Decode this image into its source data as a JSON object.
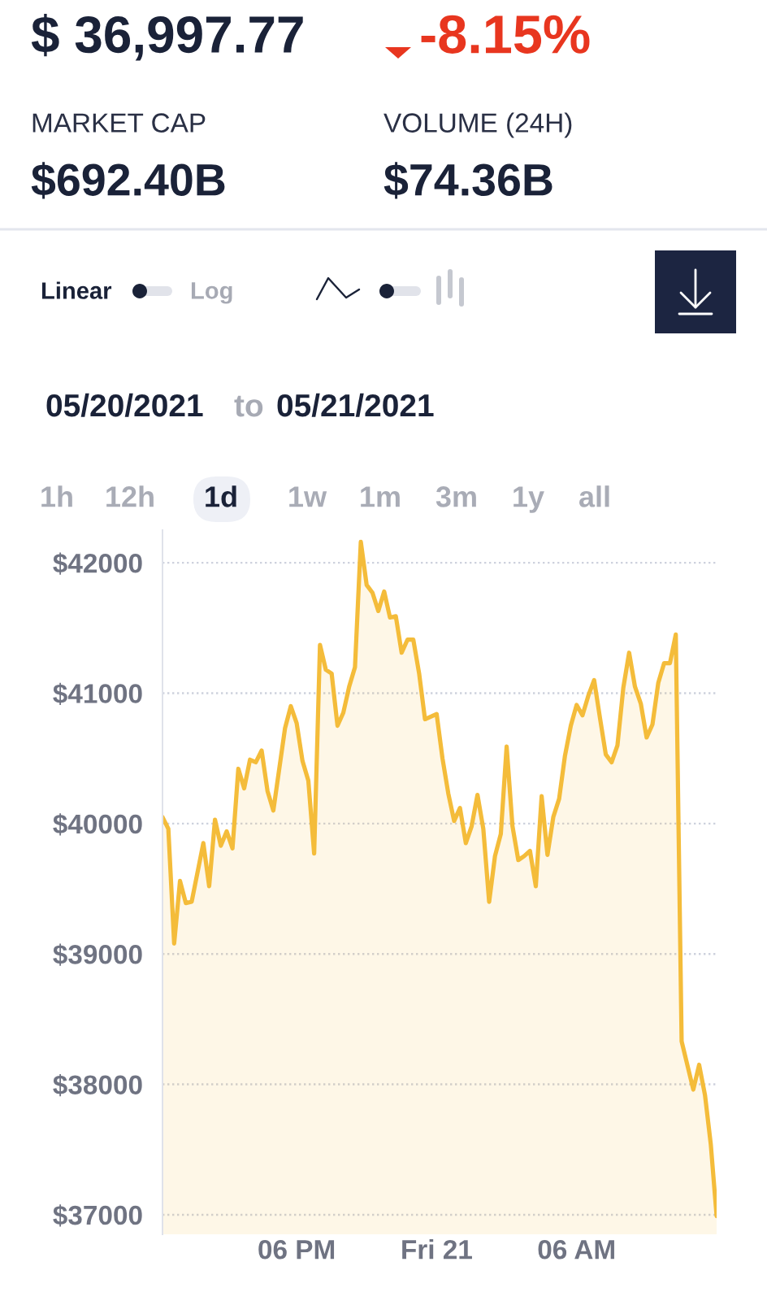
{
  "chart_data": {
    "type": "area",
    "title": "$ 36,997.77",
    "annotations": [
      "-8.15%",
      "MARKET CAP",
      "$692.40B",
      "VOLUME (24H)",
      "$74.36B",
      "Linear",
      "Log",
      "05/20/2021",
      "to",
      "05/21/2021",
      "1h",
      "12h",
      "1d",
      "1w",
      "1m",
      "3m",
      "1y",
      "all"
    ],
    "x": [
      "2021-05-20T12:15",
      "2021-05-20T12:30",
      "2021-05-20T12:45",
      "2021-05-20T13:00",
      "2021-05-20T13:15",
      "2021-05-20T13:30",
      "2021-05-20T14:00",
      "2021-05-20T14:15",
      "2021-05-20T14:30",
      "2021-05-20T14:45",
      "2021-05-20T15:00",
      "2021-05-20T15:15",
      "2021-05-20T15:30",
      "2021-05-20T15:45",
      "2021-05-20T16:00",
      "2021-05-20T16:15",
      "2021-05-20T16:30",
      "2021-05-20T16:45",
      "2021-05-20T17:00",
      "2021-05-20T17:30",
      "2021-05-20T17:45",
      "2021-05-20T18:00",
      "2021-05-20T18:15",
      "2021-05-20T18:30",
      "2021-05-20T18:45",
      "2021-05-20T19:00",
      "2021-05-20T19:15",
      "2021-05-20T19:30",
      "2021-05-20T19:45",
      "2021-05-20T20:00",
      "2021-05-20T20:15",
      "2021-05-20T20:30",
      "2021-05-20T20:45",
      "2021-05-20T21:00",
      "2021-05-20T21:15",
      "2021-05-20T21:30",
      "2021-05-20T21:45",
      "2021-05-20T22:00",
      "2021-05-20T22:15",
      "2021-05-20T22:30",
      "2021-05-20T22:45",
      "2021-05-20T23:00",
      "2021-05-20T23:15",
      "2021-05-20T23:30",
      "2021-05-21T00:00",
      "2021-05-21T00:15",
      "2021-05-21T00:30",
      "2021-05-21T00:45",
      "2021-05-21T01:00",
      "2021-05-21T01:15",
      "2021-05-21T01:30",
      "2021-05-21T01:45",
      "2021-05-21T02:00",
      "2021-05-21T02:15",
      "2021-05-21T02:30",
      "2021-05-21T02:45",
      "2021-05-21T03:00",
      "2021-05-21T03:15",
      "2021-05-21T03:30",
      "2021-05-21T03:45",
      "2021-05-21T04:00",
      "2021-05-21T04:15",
      "2021-05-21T04:30",
      "2021-05-21T04:45",
      "2021-05-21T05:00",
      "2021-05-21T05:15",
      "2021-05-21T05:30",
      "2021-05-21T05:45",
      "2021-05-21T06:00",
      "2021-05-21T06:15",
      "2021-05-21T06:30",
      "2021-05-21T06:45",
      "2021-05-21T07:00",
      "2021-05-21T07:15",
      "2021-05-21T07:30",
      "2021-05-21T07:45",
      "2021-05-21T08:00",
      "2021-05-21T08:15",
      "2021-05-21T08:30",
      "2021-05-21T08:45",
      "2021-05-21T09:00",
      "2021-05-21T09:15",
      "2021-05-21T09:30",
      "2021-05-21T09:45",
      "2021-05-21T10:00",
      "2021-05-21T10:15",
      "2021-05-21T10:30",
      "2021-05-21T11:00",
      "2021-05-21T11:15",
      "2021-05-21T11:30",
      "2021-05-21T11:45",
      "2021-05-21T12:00"
    ],
    "values": [
      40050,
      39960,
      39080,
      39560,
      39390,
      39400,
      39850,
      39520,
      40030,
      39830,
      39940,
      39810,
      40420,
      40270,
      40490,
      40470,
      40560,
      40250,
      40100,
      40730,
      40900,
      40770,
      40480,
      40330,
      39770,
      41370,
      41180,
      41150,
      40750,
      40850,
      41050,
      41200,
      42160,
      41830,
      41770,
      41630,
      41780,
      41580,
      41590,
      41310,
      41410,
      41410,
      41150,
      40800,
      40840,
      40500,
      40230,
      40020,
      40120,
      39850,
      39980,
      40220,
      39960,
      39400,
      39750,
      39920,
      40590,
      39980,
      39720,
      39750,
      39790,
      39520,
      40210,
      39760,
      40050,
      40190,
      40520,
      40750,
      40910,
      40830,
      40980,
      41100,
      40810,
      40530,
      40470,
      40600,
      41040,
      41310,
      41050,
      40920,
      40660,
      40760,
      41080,
      41230,
      41230,
      41450,
      38330,
      37960,
      38150,
      37920,
      37540,
      36990
    ],
    "color": "#f4bc3a",
    "xlim": [
      "2021-05-20T12:15",
      "2021-05-21T12:00"
    ],
    "xticks": [
      {
        "value": "2021-05-20T18:00",
        "label": "06 PM"
      },
      {
        "value": "2021-05-21T00:00",
        "label": "Fri 21"
      },
      {
        "value": "2021-05-21T06:00",
        "label": "06 AM"
      }
    ],
    "ylim": [
      36850,
      42250
    ],
    "yticks": [
      {
        "value": 37000,
        "label": "$37000"
      },
      {
        "value": 38000,
        "label": "$38000"
      },
      {
        "value": 39000,
        "label": "$39000"
      },
      {
        "value": 40000,
        "label": "$40000"
      },
      {
        "value": 41000,
        "label": "$41000"
      },
      {
        "value": 42000,
        "label": "$42000"
      }
    ],
    "grid": "y"
  }
}
